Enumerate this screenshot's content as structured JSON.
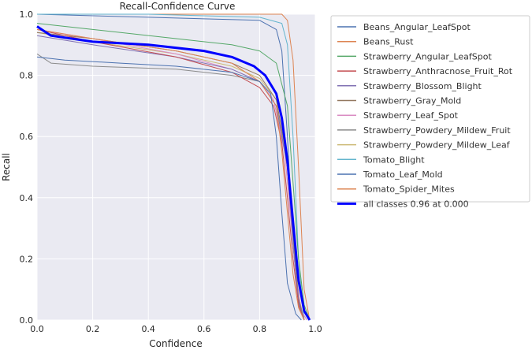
{
  "chart_data": {
    "type": "line",
    "title": "Recall-Confidence Curve",
    "xlabel": "Confidence",
    "ylabel": "Recall",
    "xlim": [
      0,
      1
    ],
    "ylim": [
      0,
      1
    ],
    "xticks": [
      "0.0",
      "0.2",
      "0.4",
      "0.6",
      "0.8",
      "1.0"
    ],
    "yticks": [
      "0.0",
      "0.2",
      "0.4",
      "0.6",
      "0.8",
      "1.0"
    ],
    "grid": true,
    "legend_position": "outside-right",
    "series": [
      {
        "name": "Beans_Angular_LeafSpot",
        "color": "#4c72b0",
        "x": [
          0,
          0.1,
          0.3,
          0.5,
          0.7,
          0.8,
          0.84,
          0.86,
          0.88,
          0.9,
          0.93,
          0.95
        ],
        "y": [
          0.86,
          0.85,
          0.84,
          0.83,
          0.81,
          0.78,
          0.74,
          0.6,
          0.35,
          0.12,
          0.02,
          0
        ]
      },
      {
        "name": "Beans_Rust",
        "color": "#dd8452",
        "x": [
          0,
          0.2,
          0.5,
          0.7,
          0.8,
          0.86,
          0.88,
          0.9,
          0.92,
          0.94,
          0.96
        ],
        "y": [
          0.95,
          0.92,
          0.88,
          0.84,
          0.78,
          0.7,
          0.55,
          0.35,
          0.15,
          0.04,
          0
        ]
      },
      {
        "name": "Strawberry_Angular_LeafSpot",
        "color": "#55a868",
        "x": [
          0,
          0.2,
          0.5,
          0.7,
          0.8,
          0.86,
          0.9,
          0.92,
          0.94,
          0.96,
          0.98
        ],
        "y": [
          0.97,
          0.95,
          0.92,
          0.9,
          0.88,
          0.84,
          0.7,
          0.45,
          0.2,
          0.05,
          0
        ]
      },
      {
        "name": "Strawberry_Anthracnose_Fruit_Rot",
        "color": "#c44e52",
        "x": [
          0,
          0.2,
          0.5,
          0.7,
          0.8,
          0.85,
          0.88,
          0.9,
          0.92,
          0.94,
          0.96
        ],
        "y": [
          0.95,
          0.91,
          0.86,
          0.81,
          0.76,
          0.7,
          0.58,
          0.4,
          0.2,
          0.05,
          0
        ]
      },
      {
        "name": "Strawberry_Blossom_Blight",
        "color": "#8172b3",
        "x": [
          0,
          0.2,
          0.5,
          0.7,
          0.8,
          0.86,
          0.9,
          0.92,
          0.94,
          0.96
        ],
        "y": [
          0.93,
          0.9,
          0.86,
          0.82,
          0.78,
          0.7,
          0.5,
          0.25,
          0.06,
          0
        ]
      },
      {
        "name": "Strawberry_Gray_Mold",
        "color": "#937860",
        "x": [
          0,
          0.2,
          0.5,
          0.7,
          0.8,
          0.86,
          0.9,
          0.92,
          0.94,
          0.96
        ],
        "y": [
          0.94,
          0.92,
          0.88,
          0.84,
          0.8,
          0.72,
          0.52,
          0.28,
          0.07,
          0
        ]
      },
      {
        "name": "Strawberry_Leaf_Spot",
        "color": "#da8bc3",
        "x": [
          0,
          0.2,
          0.5,
          0.7,
          0.8,
          0.85,
          0.89,
          0.91,
          0.93,
          0.95,
          0.97
        ],
        "y": [
          0.95,
          0.92,
          0.87,
          0.82,
          0.78,
          0.72,
          0.55,
          0.35,
          0.15,
          0.03,
          0
        ]
      },
      {
        "name": "Strawberry_Powdery_Mildew_Fruit",
        "color": "#8c8c8c",
        "x": [
          0,
          0.05,
          0.2,
          0.5,
          0.7,
          0.8,
          0.86,
          0.9,
          0.92,
          0.94,
          0.96
        ],
        "y": [
          0.87,
          0.84,
          0.83,
          0.82,
          0.8,
          0.78,
          0.7,
          0.5,
          0.25,
          0.05,
          0
        ]
      },
      {
        "name": "Strawberry_Powdery_Mildew_Leaf",
        "color": "#ccb974",
        "x": [
          0,
          0.2,
          0.5,
          0.7,
          0.8,
          0.86,
          0.9,
          0.92,
          0.94,
          0.96
        ],
        "y": [
          0.94,
          0.91,
          0.87,
          0.83,
          0.79,
          0.72,
          0.5,
          0.28,
          0.08,
          0
        ]
      },
      {
        "name": "Tomato_Blight",
        "color": "#64b5cd",
        "x": [
          0,
          0.4,
          0.8,
          0.88,
          0.9,
          0.92,
          0.94,
          0.96
        ],
        "y": [
          1.0,
          1.0,
          0.99,
          0.97,
          0.9,
          0.6,
          0.2,
          0
        ]
      },
      {
        "name": "Tomato_Leaf_Mold",
        "color": "#4c72b0",
        "x": [
          0,
          0.4,
          0.8,
          0.86,
          0.88,
          0.9,
          0.92,
          0.94,
          0.96
        ],
        "y": [
          1.0,
          0.99,
          0.98,
          0.95,
          0.88,
          0.6,
          0.25,
          0.05,
          0
        ]
      },
      {
        "name": "Tomato_Spider_Mites",
        "color": "#dd8452",
        "x": [
          0,
          0.5,
          0.88,
          0.9,
          0.92,
          0.94,
          0.96,
          0.98
        ],
        "y": [
          1.0,
          1.0,
          1.0,
          0.98,
          0.85,
          0.5,
          0.1,
          0
        ]
      },
      {
        "name": "all classes 0.96 at 0.000",
        "color": "#0000ff",
        "bold": true,
        "x": [
          0,
          0.05,
          0.2,
          0.4,
          0.6,
          0.7,
          0.78,
          0.82,
          0.86,
          0.88,
          0.9,
          0.92,
          0.94,
          0.96,
          0.98
        ],
        "y": [
          0.96,
          0.93,
          0.91,
          0.9,
          0.88,
          0.86,
          0.83,
          0.8,
          0.74,
          0.66,
          0.52,
          0.32,
          0.13,
          0.03,
          0
        ]
      }
    ]
  }
}
